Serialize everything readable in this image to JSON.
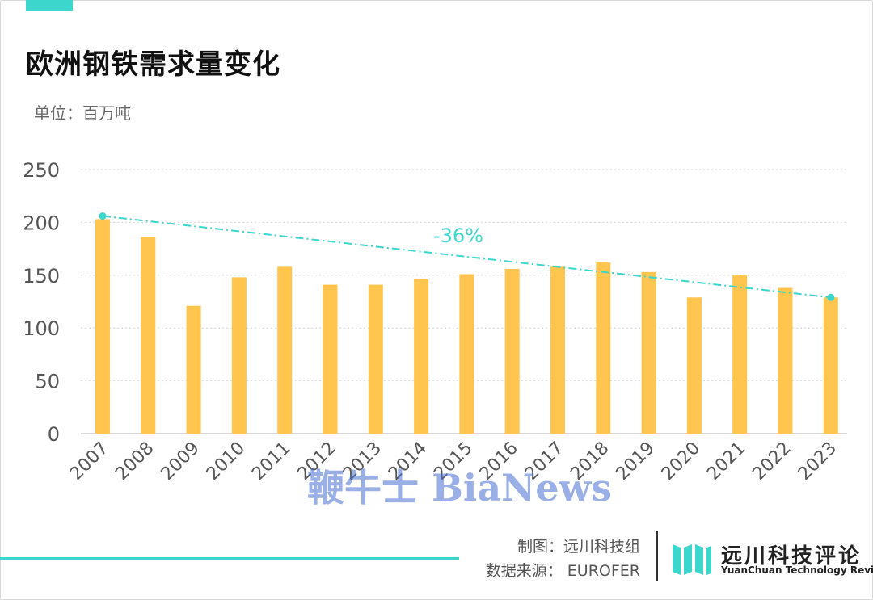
{
  "header": {
    "title": "欧洲钢铁需求量变化",
    "unit": "单位：百万吨"
  },
  "colors": {
    "bar": "#FFC54F",
    "trend": "#3DD6CC",
    "grid": "#D6D6D6",
    "axis_text": "#555555",
    "accent": "#3DD6CC"
  },
  "chart_data": {
    "type": "bar",
    "categories": [
      "2007",
      "2008",
      "2009",
      "2010",
      "2011",
      "2012",
      "2013",
      "2014",
      "2015",
      "2016",
      "2017",
      "2018",
      "2019",
      "2020",
      "2021",
      "2022",
      "2023"
    ],
    "values": [
      203,
      186,
      121,
      148,
      158,
      141,
      141,
      146,
      151,
      156,
      158,
      162,
      153,
      129,
      150,
      138,
      129
    ],
    "ylim": [
      0,
      250
    ],
    "yticks": [
      0,
      50,
      100,
      150,
      200,
      250
    ],
    "grid": "horizontal-dotted",
    "trendline": {
      "style": "dash-dot",
      "start": {
        "x": "2007",
        "y": 206
      },
      "end": {
        "x": "2023",
        "y": 129
      },
      "label": "-36%"
    },
    "title": "欧洲钢铁需求量变化",
    "xlabel": "",
    "ylabel": ""
  },
  "footer": {
    "credit_chart": "制图：远川科技组",
    "credit_source": "数据来源：  EUROFER",
    "brand_cn": "远川科技评论",
    "brand_en": "YuanChuan Technology Review"
  },
  "watermark": "鞭牛士 BiaNews"
}
